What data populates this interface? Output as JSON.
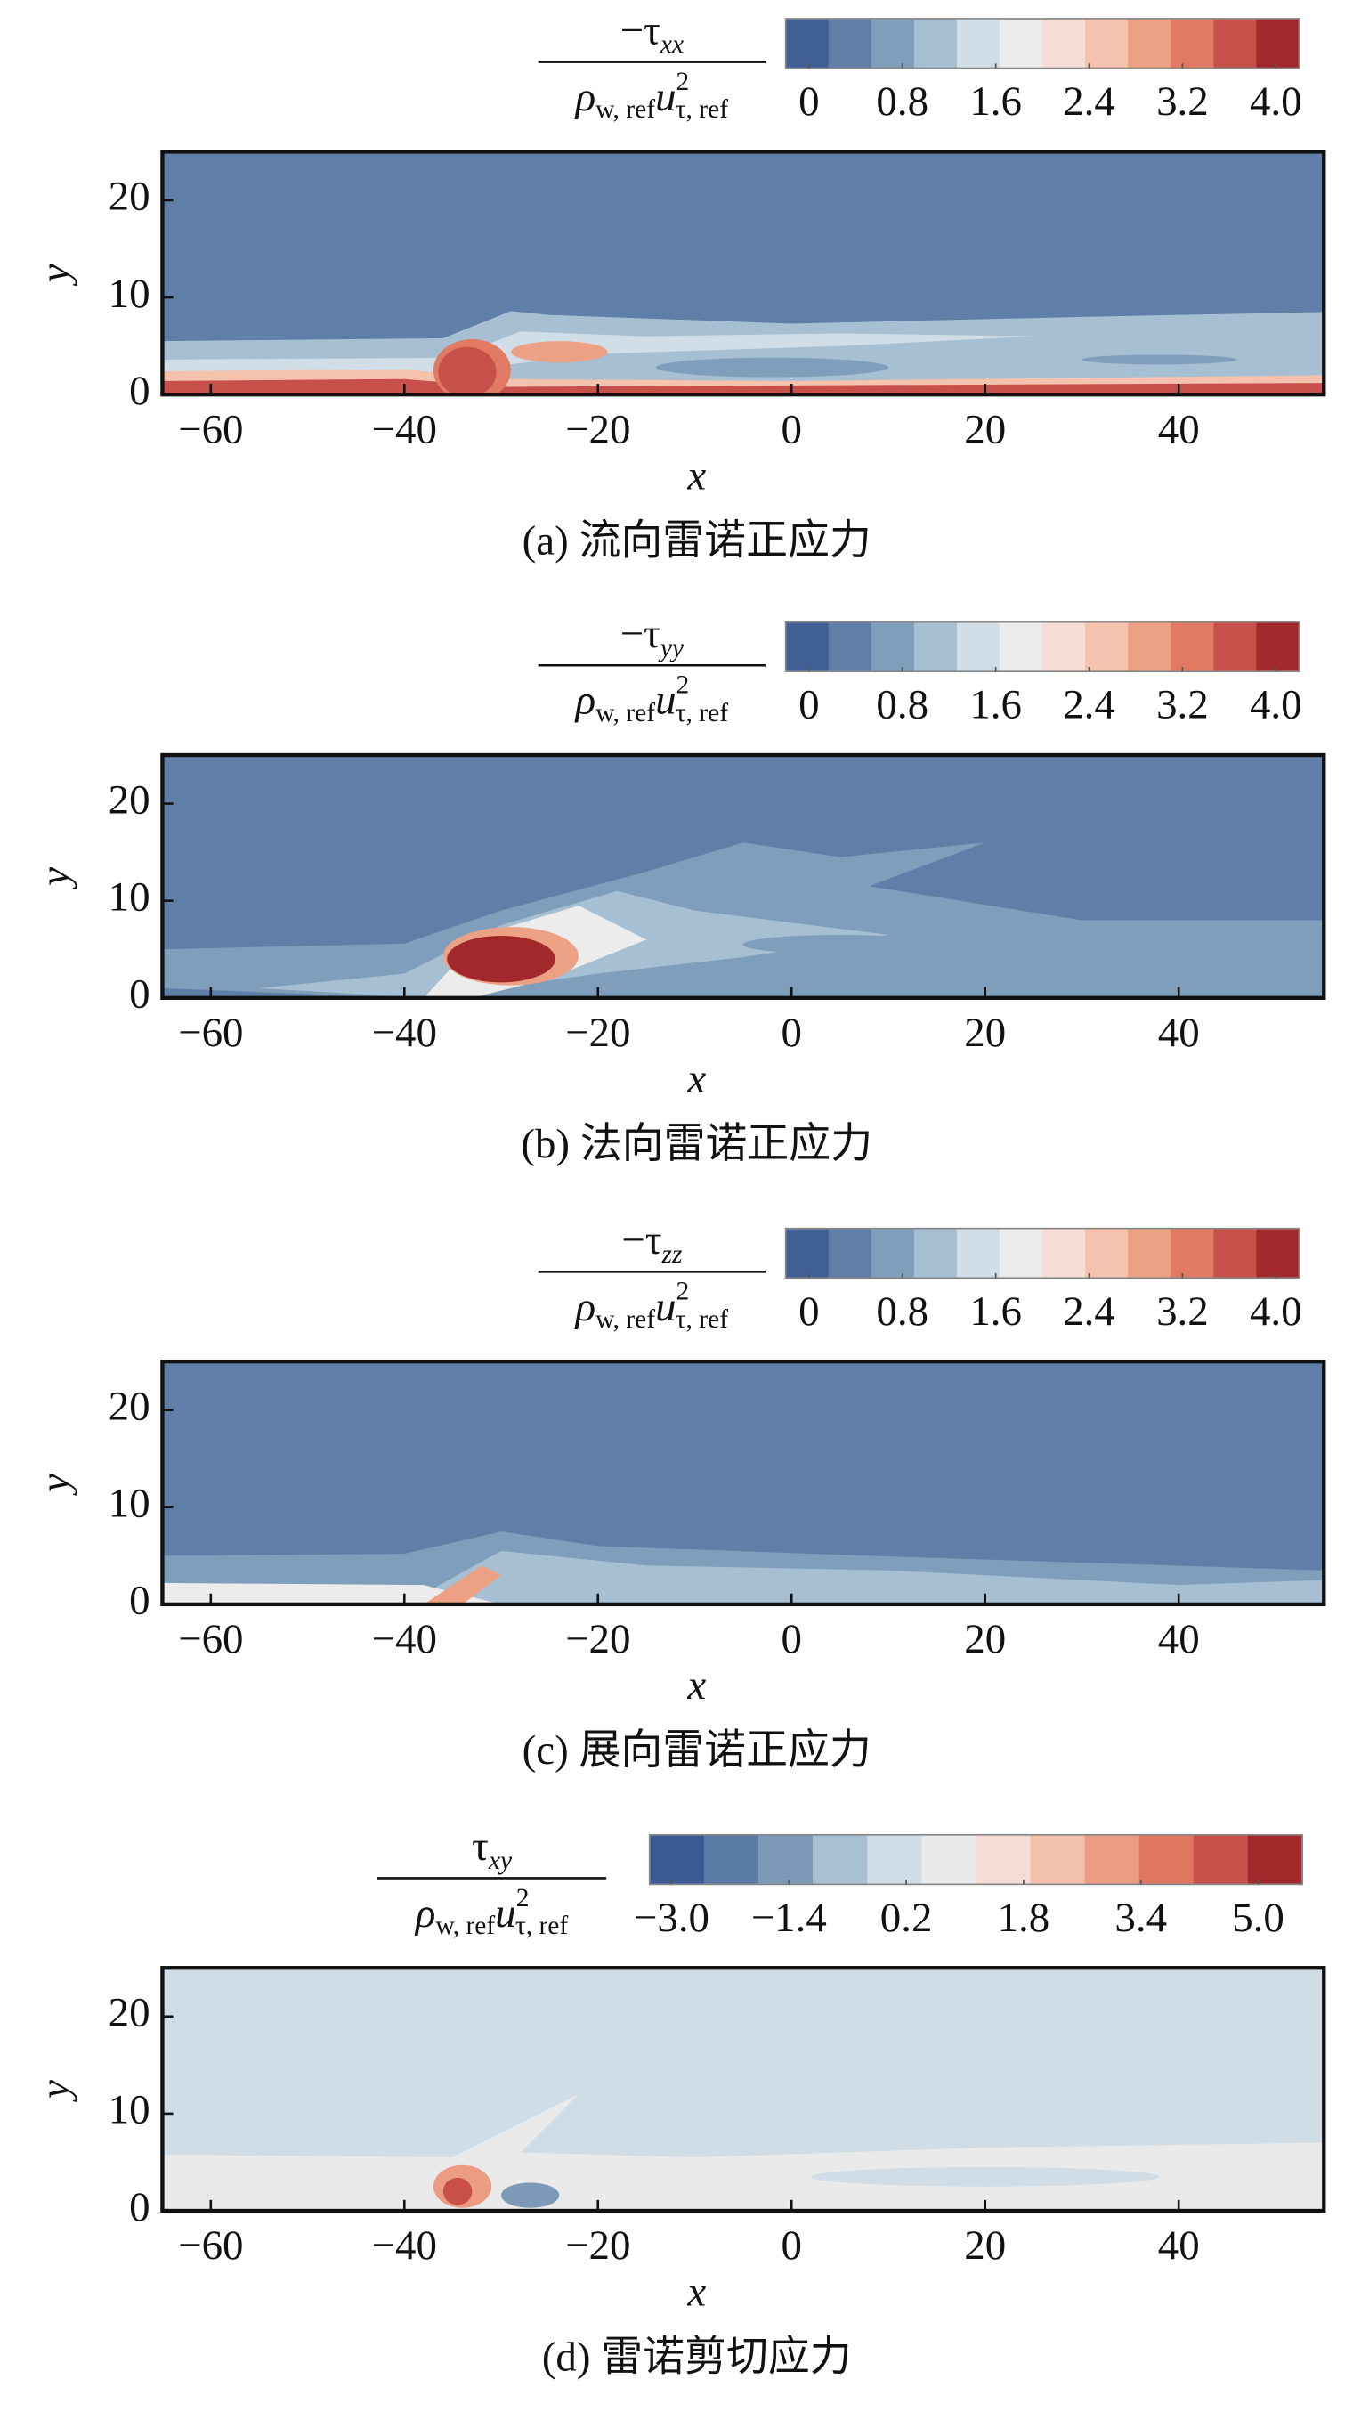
{
  "chart_data": [
    {
      "type": "contour",
      "title": "(a) 流向雷诺正应力",
      "x_label": "x",
      "y_label": "y",
      "cbar_numerator": "−τ",
      "cbar_numerator_sub": "xx",
      "cbar_denominator": "ρ",
      "cbar_denominator_sub": "w, ref",
      "cbar_u": "u",
      "cbar_u_sup": "2",
      "cbar_u_sub": "τ, ref",
      "xlim": [
        -65,
        55
      ],
      "ylim": [
        0,
        25
      ],
      "xticks": [
        {
          "value": -60,
          "label": "−60"
        },
        {
          "value": -40,
          "label": "−40"
        },
        {
          "value": -20,
          "label": "−20"
        },
        0,
        20,
        40
      ],
      "yticks": [
        0,
        10,
        20
      ],
      "clim": [
        -0.2,
        4.2
      ],
      "cticks": [
        0,
        0.8,
        1.6,
        2.4,
        3.2,
        {
          "value": 4,
          "label": "4.0"
        }
      ],
      "colors": [
        "#3f5f95",
        "#5f7fa8",
        "#7f9ebb",
        "#a6bfd2",
        "#d1dee7",
        "#ececec",
        "#f6ddd5",
        "#f4c2ad",
        "#eca184",
        "#e07a62",
        "#c8504b",
        "#a2282b"
      ]
    },
    {
      "type": "contour",
      "title": "(b) 法向雷诺正应力",
      "x_label": "x",
      "y_label": "y",
      "cbar_numerator": "−τ",
      "cbar_numerator_sub": "yy",
      "cbar_denominator": "ρ",
      "cbar_denominator_sub": "w, ref",
      "cbar_u": "u",
      "cbar_u_sup": "2",
      "cbar_u_sub": "τ, ref",
      "xlim": [
        -65,
        55
      ],
      "ylim": [
        0,
        25
      ],
      "xticks": [
        {
          "value": -60,
          "label": "−60"
        },
        {
          "value": -40,
          "label": "−40"
        },
        {
          "value": -20,
          "label": "−20"
        },
        0,
        20,
        40
      ],
      "yticks": [
        0,
        10,
        20
      ],
      "clim": [
        -0.2,
        4.2
      ],
      "cticks": [
        0,
        0.8,
        1.6,
        2.4,
        3.2,
        {
          "value": 4,
          "label": "4.0"
        }
      ],
      "colors": [
        "#3f5f95",
        "#5f7fa8",
        "#7f9ebb",
        "#a6bfd2",
        "#d1dee7",
        "#ececec",
        "#f6ddd5",
        "#f4c2ad",
        "#eca184",
        "#e07a62",
        "#c8504b",
        "#a2282b"
      ]
    },
    {
      "type": "contour",
      "title": "(c) 展向雷诺正应力",
      "x_label": "x",
      "y_label": "y",
      "cbar_numerator": "−τ",
      "cbar_numerator_sub": "zz",
      "cbar_denominator": "ρ",
      "cbar_denominator_sub": "w, ref",
      "cbar_u": "u",
      "cbar_u_sup": "2",
      "cbar_u_sub": "τ, ref",
      "xlim": [
        -65,
        55
      ],
      "ylim": [
        0,
        25
      ],
      "xticks": [
        {
          "value": -60,
          "label": "−60"
        },
        {
          "value": -40,
          "label": "−40"
        },
        {
          "value": -20,
          "label": "−20"
        },
        0,
        20,
        40
      ],
      "yticks": [
        0,
        10,
        20
      ],
      "clim": [
        -0.2,
        4.2
      ],
      "cticks": [
        0,
        0.8,
        1.6,
        2.4,
        3.2,
        {
          "value": 4,
          "label": "4.0"
        }
      ],
      "colors": [
        "#3f5f95",
        "#5f7fa8",
        "#7f9ebb",
        "#a6bfd2",
        "#d1dee7",
        "#ececec",
        "#f6ddd5",
        "#f4c2ad",
        "#eca184",
        "#e07a62",
        "#c8504b",
        "#a2282b"
      ]
    },
    {
      "type": "contour",
      "title": "(d) 雷诺剪切应力",
      "x_label": "x",
      "y_label": "y",
      "cbar_numerator": "τ",
      "cbar_numerator_sub": "xy",
      "cbar_denominator": "ρ",
      "cbar_denominator_sub": "w, ref",
      "cbar_u": "u",
      "cbar_u_sup": "2",
      "cbar_u_sub": "τ, ref",
      "xlim": [
        -65,
        55
      ],
      "ylim": [
        0,
        25
      ],
      "xticks": [
        {
          "value": -60,
          "label": "−60"
        },
        {
          "value": -40,
          "label": "−40"
        },
        {
          "value": -20,
          "label": "−20"
        },
        0,
        20,
        40
      ],
      "yticks": [
        0,
        10,
        20
      ],
      "clim": [
        -3.3,
        5.6
      ],
      "cticks": [
        {
          "value": -3,
          "label": "−3.0"
        },
        {
          "value": -1.4,
          "label": "−1.4"
        },
        0.2,
        1.8,
        3.4,
        {
          "value": 5,
          "label": "5.0"
        }
      ],
      "colors": [
        "#3a5a94",
        "#5a7aa6",
        "#7c9ab8",
        "#a8c0d3",
        "#d0dde6",
        "#eaeaea",
        "#f5dcd5",
        "#f3c0ab",
        "#eb9c82",
        "#e07660",
        "#c9504a",
        "#a3282a"
      ]
    }
  ]
}
